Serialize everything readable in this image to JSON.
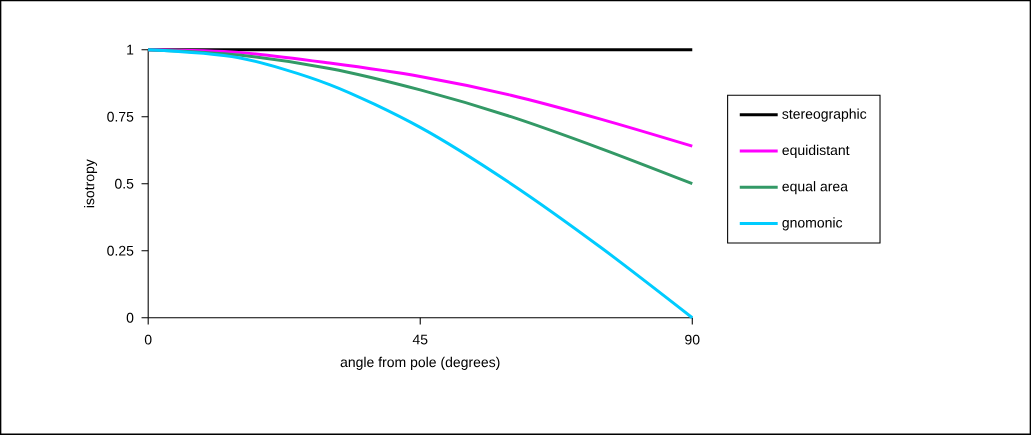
{
  "chart_data": {
    "type": "line",
    "xlabel": "angle from pole (degrees)",
    "ylabel": "isotropy",
    "x": [
      0,
      15,
      30,
      45,
      60,
      75,
      90
    ],
    "series": [
      {
        "name": "stereographic",
        "color": "#000000",
        "values": [
          1,
          1,
          1,
          1,
          1,
          1,
          1
        ]
      },
      {
        "name": "equidistant",
        "color": "#ff00ff",
        "values": [
          1,
          0.99,
          0.95,
          0.9,
          0.83,
          0.74,
          0.64
        ]
      },
      {
        "name": "equal area",
        "color": "#339966",
        "values": [
          1,
          0.98,
          0.93,
          0.85,
          0.75,
          0.63,
          0.5
        ]
      },
      {
        "name": "gnomonic",
        "color": "#00ccff",
        "values": [
          1,
          0.97,
          0.87,
          0.71,
          0.5,
          0.26,
          0
        ]
      }
    ],
    "xlim": [
      0,
      90
    ],
    "xticks": [
      0,
      45,
      90
    ],
    "ylim": [
      0,
      1
    ],
    "yticks": [
      0,
      0.25,
      0.5,
      0.75,
      1
    ],
    "legend": "right",
    "grid": false
  }
}
